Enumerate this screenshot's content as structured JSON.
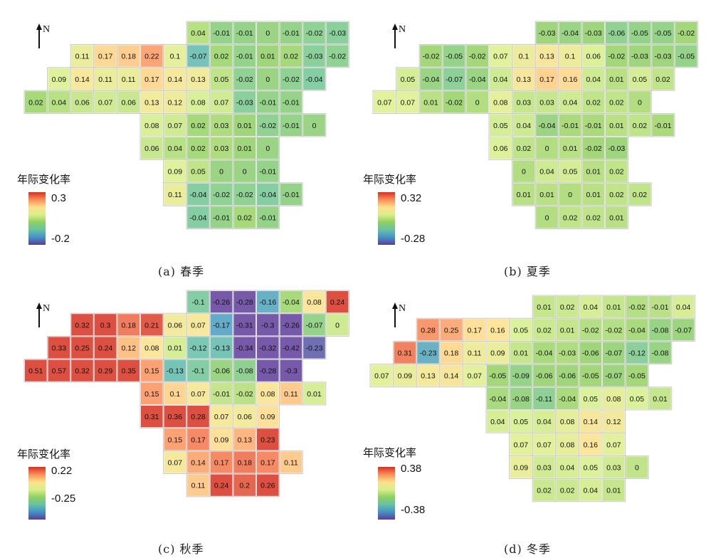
{
  "map": {
    "north_label": "N",
    "legend_title": "年际变化率",
    "colors": {
      "ramp": [
        "#d7301f",
        "#fc8d59",
        "#fee08b",
        "#d9ef8b",
        "#91cf60",
        "#66c2a5",
        "#4292c6",
        "#5e3c99"
      ],
      "grid_line": "#c8c8c8"
    },
    "panels": [
      {
        "caption": "(a) 春季",
        "legend_max": "0.3",
        "legend_min": "-0.2",
        "rows": [
          {
            "start": 7,
            "values": [
              "0.04",
              "-0.01",
              "-0.01",
              "0",
              "-0.01",
              "-0.02",
              "-0.03"
            ]
          },
          {
            "start": 2,
            "values": [
              "0.11",
              "0.17",
              "0.18",
              "0.22",
              "0.1",
              "-0.07",
              "0.02",
              "-0.01",
              "0.01",
              "0.02",
              "-0.03",
              "-0.02"
            ]
          },
          {
            "start": 1,
            "values": [
              "0.09",
              "0.14",
              "0.11",
              "0.11",
              "0.17",
              "0.14",
              "0.13",
              "0.05",
              "-0.02",
              "0",
              "-0.02",
              "-0.04"
            ]
          },
          {
            "start": 0,
            "values": [
              "0.02",
              "0.04",
              "0.06",
              "0.07",
              "0.06",
              "0.13",
              "0.12",
              "0.08",
              "0.07",
              "-0.03",
              "-0.01",
              "-0.01"
            ]
          },
          {
            "start": 5,
            "values": [
              "0.08",
              "0.07",
              "0.02",
              "0.03",
              "0.01",
              "-0.02",
              "-0.01",
              "0"
            ]
          },
          {
            "start": 5,
            "values": [
              "0.06",
              "0.04",
              "0.02",
              "0.03",
              "0.01",
              "0"
            ]
          },
          {
            "start": 6,
            "values": [
              "0.09",
              "0.05",
              "0",
              "0",
              "-0.01"
            ]
          },
          {
            "start": 6,
            "values": [
              "0.11",
              "-0.04",
              "-0.02",
              "-0.02",
              "-0.04",
              "-0.01"
            ]
          },
          {
            "start": 7,
            "values": [
              "-0.04",
              "-0.01",
              "0.02",
              "-0.01"
            ]
          }
        ]
      },
      {
        "caption": "(b) 夏季",
        "legend_max": "0.32",
        "legend_min": "-0.28",
        "rows": [
          {
            "start": 7,
            "values": [
              "-0.03",
              "-0.04",
              "-0.03",
              "-0.06",
              "-0.05",
              "-0.05",
              "-0.02"
            ]
          },
          {
            "start": 2,
            "values": [
              "-0.02",
              "-0.05",
              "-0.02",
              "0.07",
              "0.1",
              "0.13",
              "0.1",
              "0.06",
              "-0.02",
              "-0.03",
              "-0.03",
              "-0.05"
            ]
          },
          {
            "start": 1,
            "values": [
              "0.05",
              "-0.04",
              "-0.07",
              "-0.04",
              "0.04",
              "0.13",
              "0.17",
              "0.16",
              "0.04",
              "0.01",
              "0.05",
              "0.02"
            ]
          },
          {
            "start": 0,
            "values": [
              "0.07",
              "0.07",
              "0.01",
              "-0.02",
              "0",
              "0.08",
              "0.03",
              "0.03",
              "0.04",
              "0.02",
              "0.02",
              "0"
            ]
          },
          {
            "start": 5,
            "values": [
              "0.05",
              "0.04",
              "-0.04",
              "-0.01",
              "-0.01",
              "0.01",
              "0.02",
              "-0.01"
            ]
          },
          {
            "start": 5,
            "values": [
              "0.06",
              "0.02",
              "0",
              "0.01",
              "-0.02",
              "-0.03"
            ]
          },
          {
            "start": 6,
            "values": [
              "0",
              "0.04",
              "0.05",
              "0.01",
              "0.02"
            ]
          },
          {
            "start": 6,
            "values": [
              "0.01",
              "0.01",
              "0",
              "0.01",
              "0.02",
              "0.02"
            ]
          },
          {
            "start": 7,
            "values": [
              "0",
              "0.02",
              "0.02",
              "0.01"
            ]
          }
        ]
      },
      {
        "caption": "(c) 秋季",
        "legend_max": "0.22",
        "legend_min": "-0.25",
        "rows": [
          {
            "start": 7,
            "values": [
              "-0.1",
              "-0.26",
              "-0.28",
              "-0.16",
              "-0.04",
              "0.08",
              "0.24"
            ]
          },
          {
            "start": 2,
            "values": [
              "0.32",
              "0.3",
              "0.18",
              "0.21",
              "0.06",
              "0.07",
              "-0.17",
              "-0.31",
              "-0.3",
              "-0.26",
              "-0.07",
              "0"
            ]
          },
          {
            "start": 1,
            "values": [
              "0.33",
              "0.25",
              "0.24",
              "0.12",
              "0.08",
              "0.01",
              "-0.12",
              "-0.13",
              "-0.34",
              "-0.32",
              "-0.42",
              "-0.23"
            ]
          },
          {
            "start": 0,
            "values": [
              "0.51",
              "0.57",
              "0.32",
              "0.29",
              "0.35",
              "0.15",
              "-0.13",
              "-0.1",
              "-0.06",
              "-0.08",
              "-0.28",
              "-0.3"
            ]
          },
          {
            "start": 5,
            "values": [
              "0.15",
              "0.1",
              "0.07",
              "-0.01",
              "-0.02",
              "0.08",
              "0.11",
              "0.01"
            ]
          },
          {
            "start": 5,
            "values": [
              "0.31",
              "0.36",
              "0.28",
              "0.07",
              "0.06",
              "0.09"
            ]
          },
          {
            "start": 6,
            "values": [
              "0.15",
              "0.17",
              "0.09",
              "0.13",
              "0.23"
            ]
          },
          {
            "start": 6,
            "values": [
              "0.07",
              "0.14",
              "0.17",
              "0.18",
              "0.17",
              "0.11"
            ]
          },
          {
            "start": 7,
            "values": [
              "0.11",
              "0.24",
              "0.2",
              "0.26"
            ]
          }
        ]
      },
      {
        "caption": "(d) 冬季",
        "legend_max": "0.38",
        "legend_min": "-0.38",
        "rows": [
          {
            "start": 7,
            "values": [
              "0.01",
              "0.02",
              "0.04",
              "0.01",
              "-0.02",
              "-0.01",
              "0.04"
            ]
          },
          {
            "start": 2,
            "values": [
              "0.28",
              "0.25",
              "0.17",
              "0.16",
              "0.05",
              "0.02",
              "0.01",
              "-0.02",
              "-0.02",
              "-0.04",
              "-0.08",
              "-0.07"
            ]
          },
          {
            "start": 1,
            "values": [
              "0.31",
              "-0.23",
              "0.18",
              "0.11",
              "0.09",
              "0.01",
              "-0.04",
              "-0.03",
              "-0.06",
              "-0.07",
              "-0.12",
              "-0.08"
            ]
          },
          {
            "start": 0,
            "values": [
              "0.07",
              "0.09",
              "0.13",
              "0.14",
              "0.07",
              "-0.05",
              "-0.09",
              "-0.06",
              "-0.06",
              "-0.05",
              "-0.07",
              "-0.05"
            ]
          },
          {
            "start": 5,
            "values": [
              "-0.04",
              "-0.08",
              "-0.11",
              "-0.04",
              "0.05",
              "0.08",
              "0.05",
              "0.01"
            ]
          },
          {
            "start": 5,
            "values": [
              "0.04",
              "0.05",
              "0.04",
              "0.08",
              "0.14",
              "0.12"
            ]
          },
          {
            "start": 6,
            "values": [
              "0.07",
              "0.07",
              "0.08",
              "0.16",
              "0.07"
            ]
          },
          {
            "start": 6,
            "values": [
              "0.09",
              "0.03",
              "0.04",
              "0.05",
              "0.03",
              "0"
            ]
          },
          {
            "start": 7,
            "values": [
              "0.02",
              "0.02",
              "0.04",
              "0.01"
            ]
          }
        ]
      }
    ]
  }
}
